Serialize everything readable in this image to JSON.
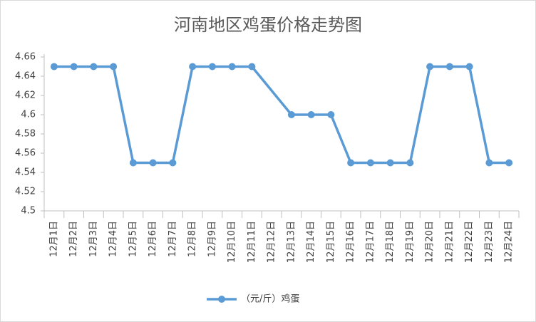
{
  "chart_data": {
    "type": "line",
    "title": "河南地区鸡蛋价格走势图",
    "categories": [
      "12月1日",
      "12月2日",
      "12月3日",
      "12月4日",
      "12月5日",
      "12月6日",
      "12月7日",
      "12月8日",
      "12月9日",
      "12月10日",
      "12月11日",
      "12月12日",
      "12月13日",
      "12月14日",
      "12月15日",
      "12月16日",
      "12月17日",
      "12月18日",
      "12月19日",
      "12月20日",
      "12月21日",
      "12月22日",
      "12月23日",
      "12月24日"
    ],
    "series": [
      {
        "name": "（元/斤）鸡蛋",
        "color": "#5b9bd5",
        "values": [
          4.65,
          4.65,
          4.65,
          4.65,
          4.55,
          4.55,
          4.55,
          4.65,
          4.65,
          4.65,
          4.65,
          null,
          4.6,
          4.6,
          4.6,
          4.55,
          4.55,
          4.55,
          4.55,
          4.65,
          4.65,
          4.65,
          4.55,
          4.55
        ]
      }
    ],
    "ylim": [
      4.5,
      4.66
    ],
    "yticks": [
      4.5,
      4.52,
      4.54,
      4.56,
      4.58,
      4.6,
      4.62,
      4.64,
      4.66
    ],
    "grid": false,
    "connect_gaps": true,
    "legend": "bottom"
  }
}
